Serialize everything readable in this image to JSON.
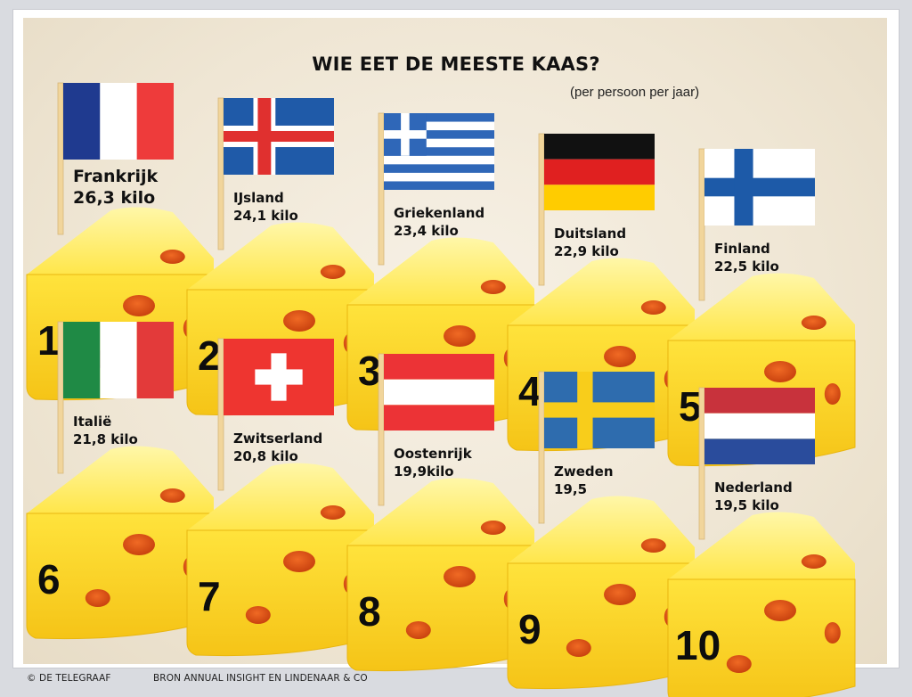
{
  "chart_data": {
    "type": "table",
    "title": "WIE EET DE MEESTE KAAS?",
    "subtitle": "(per persoon per jaar)",
    "rows": [
      {
        "rank": "1",
        "country": "Frankrijk",
        "value_label": "26,3 kilo",
        "value": 26.3,
        "flag": "france-flag"
      },
      {
        "rank": "2",
        "country": "IJsland",
        "value_label": "24,1 kilo",
        "value": 24.1,
        "flag": "iceland-flag"
      },
      {
        "rank": "3",
        "country": "Griekenland",
        "value_label": "23,4 kilo",
        "value": 23.4,
        "flag": "greece-flag"
      },
      {
        "rank": "4",
        "country": "Duitsland",
        "value_label": "22,9 kilo",
        "value": 22.9,
        "flag": "germany-flag"
      },
      {
        "rank": "5",
        "country": "Finland",
        "value_label": "22,5 kilo",
        "value": 22.5,
        "flag": "finland-flag"
      },
      {
        "rank": "6",
        "country": "Italië",
        "value_label": "21,8 kilo",
        "value": 21.8,
        "flag": "italy-flag"
      },
      {
        "rank": "7",
        "country": "Zwitserland",
        "value_label": "20,8 kilo",
        "value": 20.8,
        "flag": "switzerland-flag"
      },
      {
        "rank": "8",
        "country": "Oostenrijk",
        "value_label": "19,9kilo",
        "value": 19.9,
        "flag": "austria-flag"
      },
      {
        "rank": "9",
        "country": "Zweden",
        "value_label": "19,5",
        "value": 19.5,
        "flag": "sweden-flag"
      },
      {
        "rank": "10",
        "country": "Nederland",
        "value_label": "19,5 kilo",
        "value": 19.5,
        "flag": "netherlands-flag"
      }
    ]
  },
  "footer": {
    "credit": "© DE TELEGRAAF",
    "source": "BRON ANNUAL INSIGHT EN LINDENAAR & CO"
  },
  "colors": {
    "cheese_light": "#fff17a",
    "cheese_mid": "#ffe135",
    "cheese_dark": "#f2bf12",
    "hole": "#e1531b",
    "stick": "#f1d59b"
  }
}
